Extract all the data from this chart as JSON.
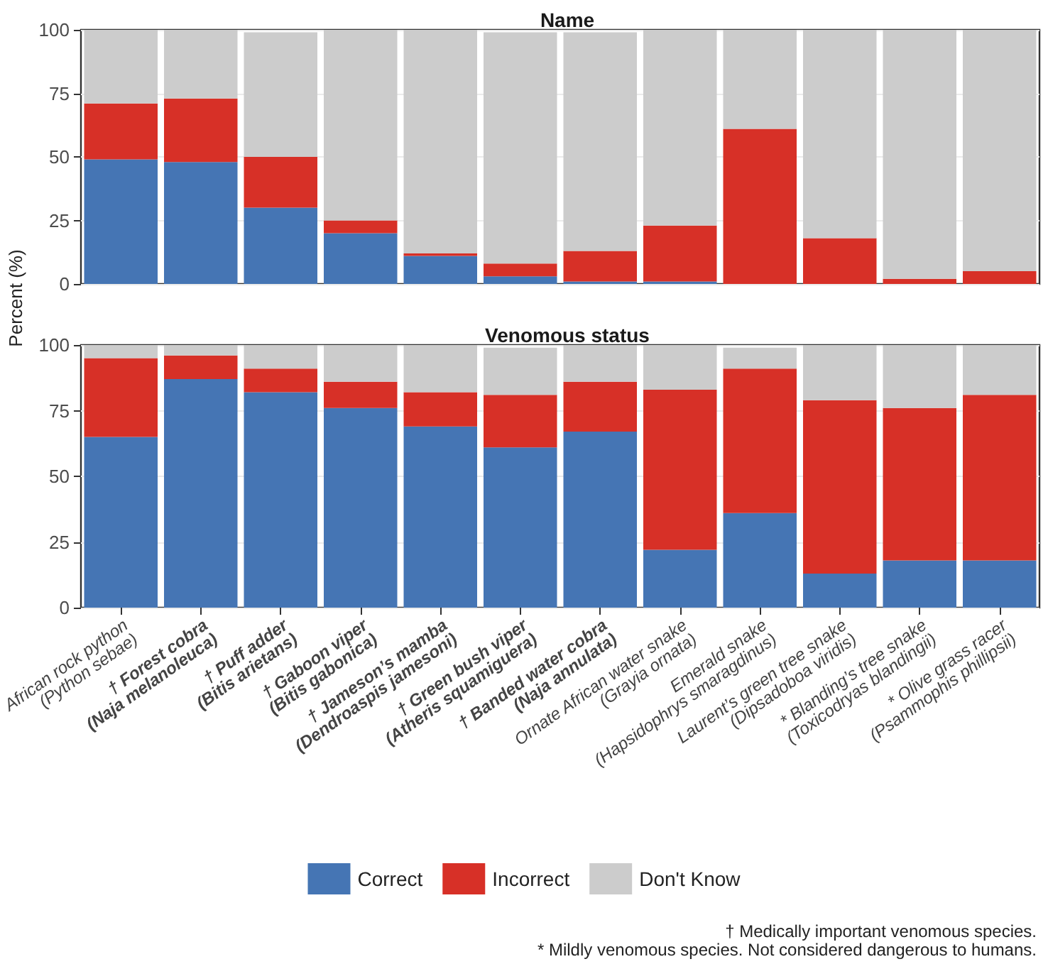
{
  "chart_data": [
    {
      "type": "bar",
      "stacked": true,
      "title": "Name",
      "ylabel": "Percent (%)",
      "tick_labels": "y",
      "grid": "y",
      "legend": false,
      "categories": [
        null,
        null,
        null,
        null,
        null,
        null,
        null,
        null,
        null,
        null,
        null,
        null
      ],
      "ylim": [
        0,
        100
      ],
      "yticks": [
        0,
        25,
        50,
        75,
        100
      ],
      "series": [
        {
          "color": "#4575b4",
          "values": [
            49,
            48,
            30,
            20,
            11,
            3,
            1,
            1,
            0,
            0,
            0,
            0
          ]
        },
        {
          "color": "#d73027",
          "values": [
            22,
            25,
            20,
            5,
            1,
            5,
            12,
            22,
            61,
            18,
            2,
            5
          ]
        },
        {
          "color": "#cccccc",
          "values": [
            29,
            27,
            49,
            75,
            88,
            91,
            86,
            77,
            39,
            82,
            98,
            95
          ]
        }
      ]
    },
    {
      "type": "bar",
      "stacked": true,
      "title": "Venomous status",
      "grid": "y",
      "legend": "bottom",
      "categories": [
        "African rock python\n(Python sebae)",
        "† Forest cobra\n(Naja melanoleuca)",
        "† Puff adder\n(Bitis arietans)",
        "† Gaboon viper\n(Bitis gabonica)",
        "† Jameson’s mamba\n(Dendroaspis jamesoni)",
        "† Green bush viper\n(Atheris squamiguera)",
        "† Banded water cobra\n(Naja annulata)",
        "Ornate African water snake\n(Grayia ornata)",
        "Emerald snake\n(Hapsidophrys smaragdinus)",
        "Laurent’s green tree snake\n(Dipsadoboa viridis)",
        "* Blanding’s tree snake\n(Toxicodryas blandingii)",
        "* Olive grass racer\n(Psammophis phillipsii)"
      ],
      "ylim": [
        0,
        100
      ],
      "yticks": [
        0,
        25,
        50,
        75,
        100
      ],
      "annotations": [
        "† Medically important venomous species.",
        "* Mildly venomous species. Not considered dangerous to humans."
      ],
      "series": [
        {
          "name": "Correct",
          "color": "#4575b4",
          "values": [
            65,
            87,
            82,
            76,
            69,
            61,
            67,
            22,
            36,
            13,
            18,
            18
          ]
        },
        {
          "name": "Incorrect",
          "color": "#d73027",
          "values": [
            30,
            9,
            9,
            10,
            13,
            20,
            19,
            61,
            55,
            66,
            58,
            63
          ]
        },
        {
          "name": "Don't Know",
          "color": "#cccccc",
          "values": [
            5,
            4,
            9,
            14,
            18,
            18,
            14,
            17,
            8,
            21,
            24,
            19
          ]
        }
      ]
    }
  ]
}
